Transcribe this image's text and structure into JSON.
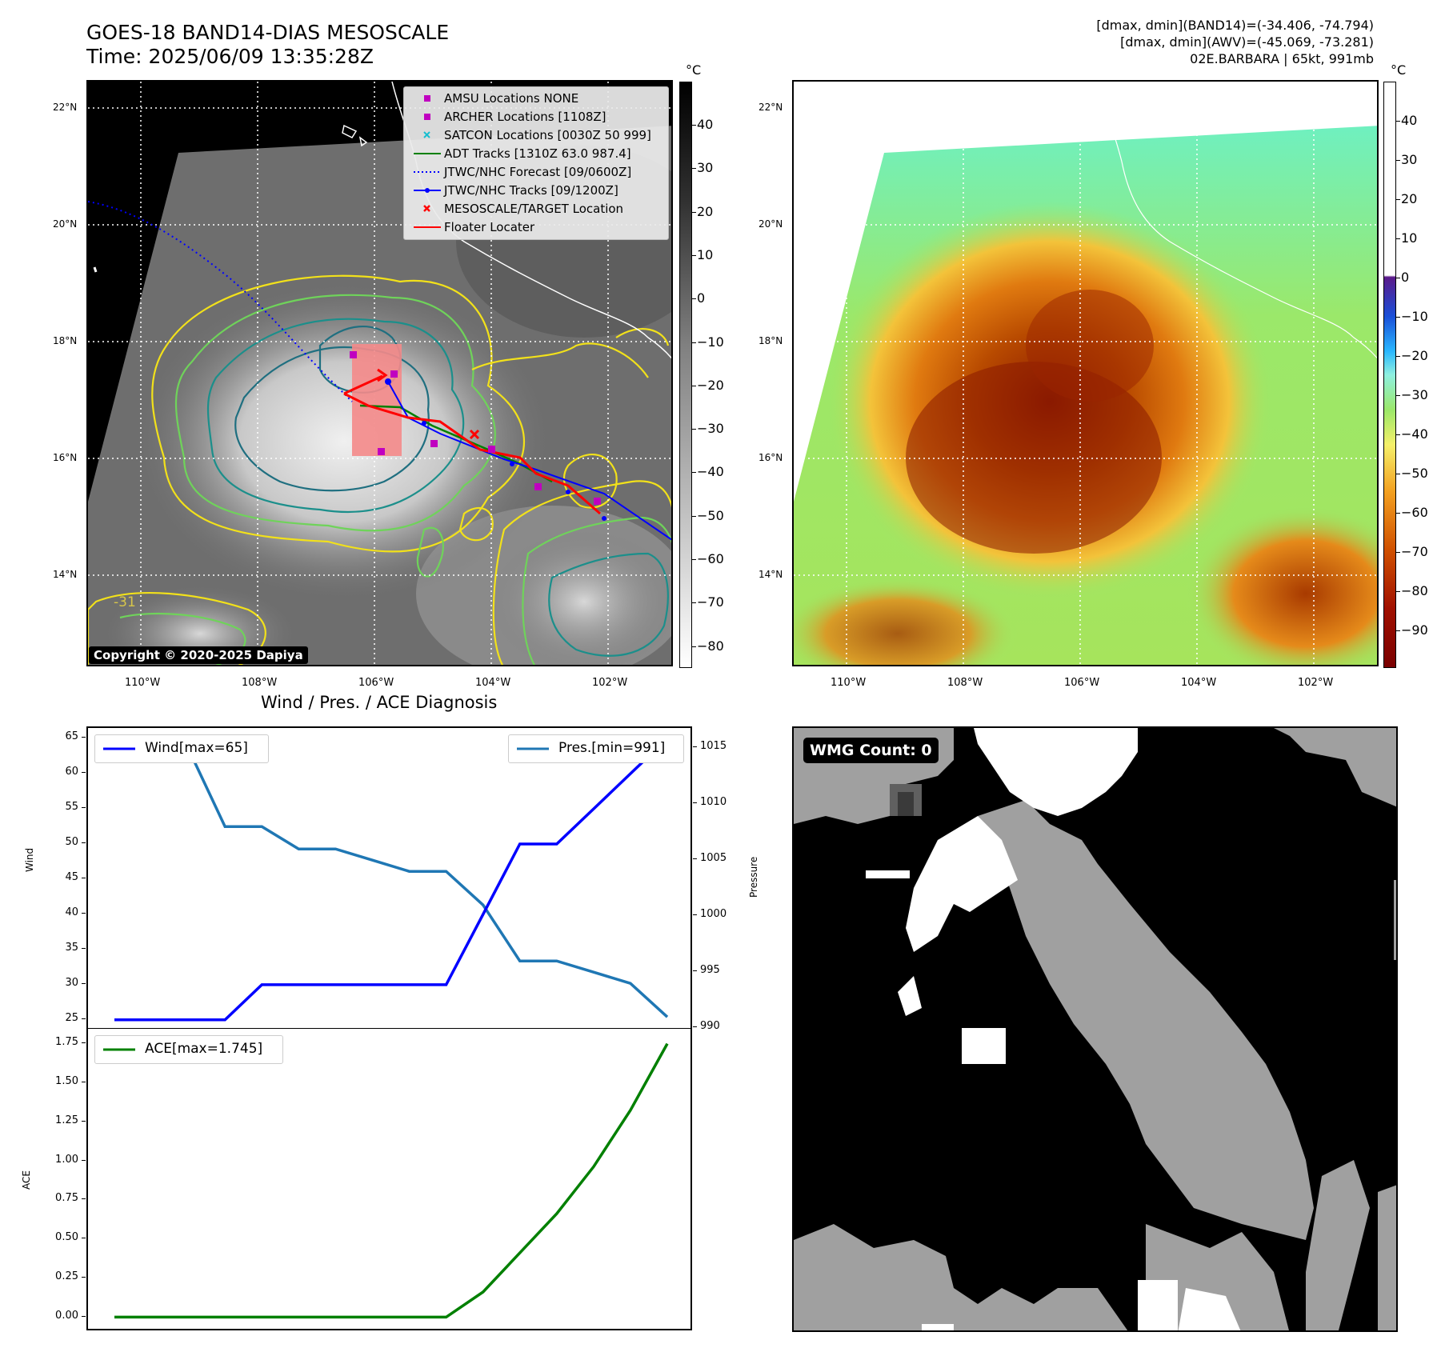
{
  "header": {
    "title_line1": "GOES-18 BAND14-DIAS MESOSCALE",
    "title_line2": "Time: 2025/06/09 13:35:28Z",
    "info_line1": "[dmax, dmin](BAND14)=(-34.406, -74.794)",
    "info_line2": "[dmax, dmin](AWV)=(-45.069, -73.281)",
    "info_line3": "02E.BARBARA | 65kt, 991mb"
  },
  "maps": {
    "lat_labels": [
      "22°N",
      "20°N",
      "18°N",
      "16°N",
      "14°N"
    ],
    "lon_labels": [
      "110°W",
      "108°W",
      "106°W",
      "104°W",
      "102°W"
    ],
    "contour_label": "-31",
    "copyright": "Copyright © 2020-2025 Dapiya",
    "colors": {
      "land_coast": "#ffffff",
      "contour_outer": "#f2e11a",
      "contour_mid": "#6fd35a",
      "contour_inner": "#1b8f8b",
      "contour_core": "#1f6f80"
    }
  },
  "legend": {
    "items": [
      {
        "label": "AMSU Locations NONE",
        "icon": "magenta-square",
        "color": "#c000c0"
      },
      {
        "label": "ARCHER Locations [1108Z]",
        "icon": "magenta-square",
        "color": "#c000c0"
      },
      {
        "label": "SATCON Locations [0030Z 50 999]",
        "icon": "cyan-x",
        "color": "#17becf"
      },
      {
        "label": "ADT Tracks [1310Z 63.0 987.4]",
        "icon": "green-line",
        "color": "#008000"
      },
      {
        "label": "JTWC/NHC Forecast [09/0600Z]",
        "icon": "blue-dotted-line",
        "color": "#0000ff"
      },
      {
        "label": "JTWC/NHC Tracks [09/1200Z]",
        "icon": "blue-line-dot",
        "color": "#0000ff"
      },
      {
        "label": "MESOSCALE/TARGET Location",
        "icon": "red-x",
        "color": "#ff0000"
      },
      {
        "label": "Floater Locater",
        "icon": "red-line",
        "color": "#ff0000"
      }
    ]
  },
  "colorbars": {
    "unit": "°C",
    "gray_ticks": [
      "40",
      "30",
      "20",
      "10",
      "0",
      "−10",
      "−20",
      "−30",
      "−40",
      "−50",
      "−60",
      "−70",
      "−80"
    ],
    "color_ticks": [
      "40",
      "30",
      "20",
      "10",
      "0",
      "−10",
      "−20",
      "−30",
      "−40",
      "−50",
      "−60",
      "−70",
      "−80",
      "−90"
    ]
  },
  "wmg": {
    "label": "WMG Count: 0"
  },
  "chart_data": [
    {
      "type": "line",
      "title": "Wind / Pres. / ACE Diagnosis",
      "x": [
        0,
        1,
        2,
        3,
        4,
        5,
        6,
        7,
        8,
        9,
        10,
        11,
        12,
        13,
        14,
        15
      ],
      "series": [
        {
          "name": "Wind[max=65]",
          "axis": "left",
          "color": "#0000ff",
          "values": [
            25,
            25,
            25,
            25,
            30,
            30,
            30,
            30,
            30,
            30,
            40,
            50,
            50,
            55,
            60,
            65
          ]
        },
        {
          "name": "Pres.[min=991]",
          "axis": "right",
          "color": "#1f77b4",
          "values": [
            1015,
            1015,
            1015,
            1008,
            1008,
            1006,
            1006,
            1005,
            1004,
            1004,
            1001,
            996,
            996,
            995,
            994,
            991
          ]
        }
      ],
      "ylabel": "Wind",
      "ylabel_right": "Pressure",
      "yticks": [
        "25",
        "30",
        "35",
        "40",
        "45",
        "50",
        "55",
        "60",
        "65"
      ],
      "yticks_right": [
        "990",
        "995",
        "1000",
        "1005",
        "1010",
        "1015"
      ],
      "ylim": [
        23.5,
        66.5
      ],
      "ylim_right": [
        989.8,
        1016.8
      ],
      "legend": "top-left and top-right"
    },
    {
      "type": "line",
      "x": [
        0,
        1,
        2,
        3,
        4,
        5,
        6,
        7,
        8,
        9,
        10,
        11,
        12,
        13,
        14,
        15
      ],
      "series": [
        {
          "name": "ACE[max=1.745]",
          "color": "#008000",
          "values": [
            0,
            0,
            0,
            0,
            0,
            0,
            0,
            0,
            0,
            0,
            0.16,
            0.41,
            0.66,
            0.96,
            1.32,
            1.745
          ]
        }
      ],
      "ylabel": "ACE",
      "yticks": [
        "0.00",
        "0.25",
        "0.50",
        "0.75",
        "1.00",
        "1.25",
        "1.50",
        "1.75"
      ],
      "ylim": [
        -0.09,
        1.84
      ],
      "legend": "top-left"
    }
  ]
}
